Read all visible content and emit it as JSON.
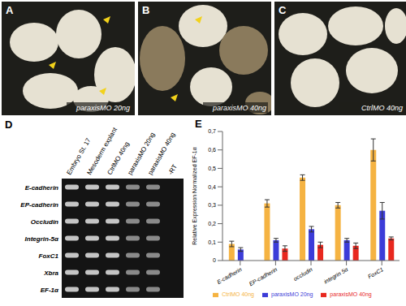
{
  "panels": [
    {
      "letter": "A",
      "caption": "paraxisMO 20ng"
    },
    {
      "letter": "B",
      "caption": "paraxisMO 40ng"
    },
    {
      "letter": "C",
      "caption": "CtrlMO 40ng"
    }
  ],
  "gel": {
    "letter": "D",
    "lanes": [
      "Embryo St. 17",
      "Mesoderm explant",
      "CtrlMO 40ng",
      "paraxisMO 20ng",
      "paraxisMO 40ng",
      "-RT"
    ],
    "genes": [
      "E-cadherin",
      "EP-cadherin",
      "Occludin",
      "Integrin-5α",
      "FoxC1",
      "Xbra",
      "EF-1α"
    ]
  },
  "chart_letter": "E",
  "chart_data": {
    "type": "bar",
    "y_label": "Relative Expression Normalized EF-1α",
    "categories": [
      "E-cadherin",
      "EP-cadherin",
      "occludin",
      "integrin 5α",
      "FoxC1"
    ],
    "series": [
      {
        "name": "CtrlMO 40ng",
        "color": "#f5b342",
        "values": [
          0.09,
          0.31,
          0.45,
          0.3,
          0.6
        ],
        "errors": [
          0.015,
          0.02,
          0.015,
          0.015,
          0.06
        ]
      },
      {
        "name": "paraxisMO 20ng",
        "color": "#3c3cd8",
        "values": [
          0.06,
          0.11,
          0.17,
          0.11,
          0.27
        ],
        "errors": [
          0.01,
          0.01,
          0.015,
          0.01,
          0.045
        ]
      },
      {
        "name": "paraxisMO 40ng",
        "color": "#e8281f",
        "values": [
          null,
          0.065,
          0.085,
          0.08,
          0.12
        ],
        "errors": [
          null,
          0.015,
          0.015,
          0.015,
          0.008
        ]
      }
    ],
    "ylim": [
      0,
      0.7
    ],
    "yticks": [
      0,
      {
        "value": 0.1,
        "label": "0,1"
      },
      {
        "value": 0.2,
        "label": "0,2"
      },
      {
        "value": 0.3,
        "label": "0,3"
      },
      {
        "value": 0.4,
        "label": "0,4"
      },
      {
        "value": 0.5,
        "label": "0,5"
      },
      {
        "value": 0.6,
        "label": "0,6"
      },
      {
        "value": 0.7,
        "label": "0,7"
      }
    ],
    "legend": "bottom"
  }
}
